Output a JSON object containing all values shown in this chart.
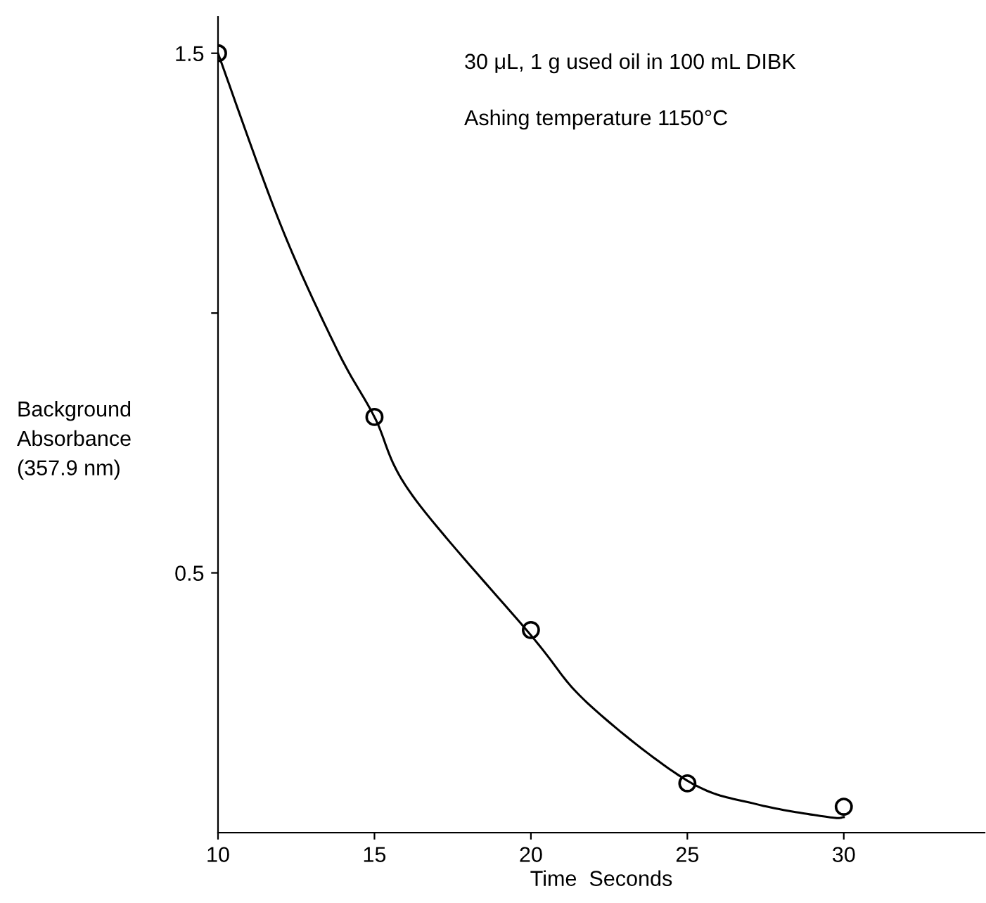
{
  "chart_data": {
    "type": "scatter",
    "xlabel": "Time  Seconds",
    "ylabel": "Background\nAbsorbance\n(357.9 nm)",
    "annotations": [
      "30 μL, 1 g used oil in 100 mL DIBK",
      "Ashing temperature 1150°C"
    ],
    "series": [
      {
        "color": "#000000",
        "marker": "circle",
        "x": [
          10,
          15,
          20,
          25,
          30
        ],
        "values": [
          1.5,
          0.8,
          0.39,
          0.095,
          0.05
        ]
      },
      {
        "type": "line",
        "color": "#000000",
        "marker": "none",
        "x": [
          10,
          12,
          13.8,
          15,
          16.2,
          20,
          21.8,
          25,
          27.2,
          29.5,
          30
        ],
        "values": [
          1.5,
          1.17,
          0.93,
          0.8,
          0.65,
          0.38,
          0.25,
          0.1,
          0.055,
          0.03,
          0.03
        ]
      }
    ],
    "xlim": [
      10,
      34.5
    ],
    "ylim": [
      0,
      1.57
    ],
    "xticks": [
      10,
      15,
      20,
      25,
      30
    ],
    "yticks": [
      {
        "value": 0.5,
        "label": "0.5"
      },
      {
        "value": 1.0,
        "label": null
      },
      {
        "value": 1.5,
        "label": "1.5"
      }
    ],
    "grid": false,
    "legend": false
  }
}
